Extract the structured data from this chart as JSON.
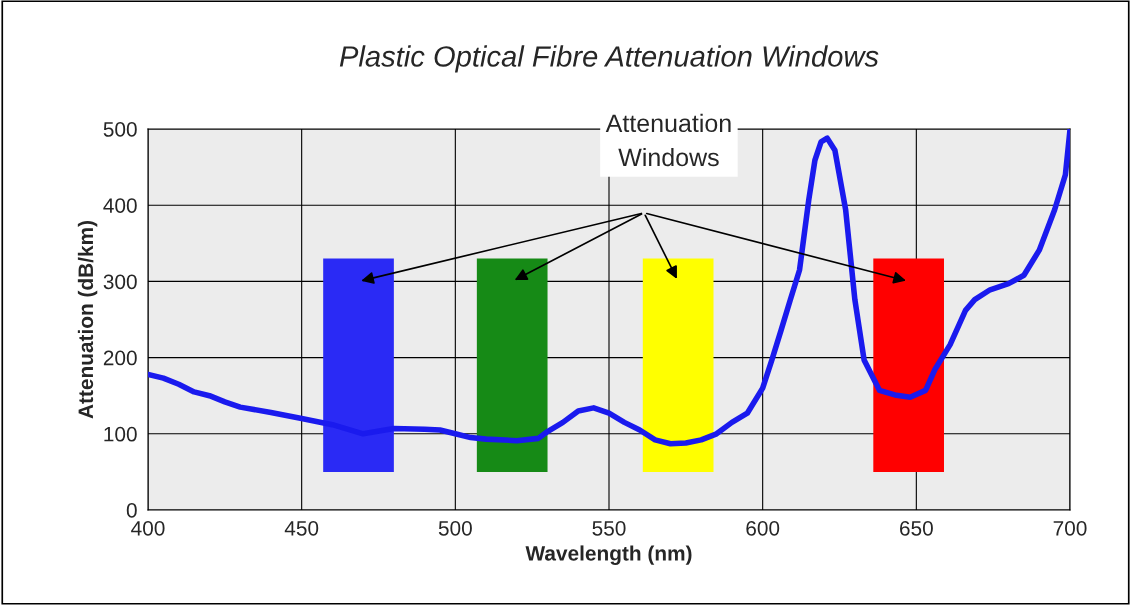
{
  "chart_data": {
    "type": "line",
    "title": "Plastic Optical Fibre Attenuation Windows",
    "xlabel": "Wavelength (nm)",
    "ylabel": "Attenuation (dB/km)",
    "xlim": [
      400,
      700
    ],
    "xticks": [
      400,
      450,
      500,
      550,
      600,
      650,
      700
    ],
    "ylim": [
      0,
      500
    ],
    "yticks": [
      0,
      100,
      200,
      300,
      400,
      500
    ],
    "grid": true,
    "legend": false,
    "annotations": [
      "Attenuation\nWindows"
    ],
    "series": [
      {
        "color": "#1a1aee",
        "x": [
          400,
          405,
          410,
          415,
          420,
          425,
          430,
          440,
          450,
          460,
          470,
          480,
          490,
          495,
          500,
          505,
          510,
          520,
          527,
          530,
          535,
          540,
          545,
          550,
          555,
          560,
          565,
          570,
          575,
          580,
          585,
          590,
          595,
          600,
          603,
          606,
          609,
          612,
          615,
          617,
          619,
          621,
          623.5,
          627,
          630,
          633,
          638,
          643,
          648,
          653,
          656,
          661,
          666,
          669,
          674,
          680,
          685,
          690,
          695,
          698.5,
          700
        ],
        "values": [
          178,
          173,
          165,
          155,
          150,
          142,
          135,
          128,
          120,
          112,
          100,
          107,
          106,
          105,
          100,
          95,
          93,
          91,
          94,
          103,
          115,
          130,
          134,
          127,
          115,
          105,
          92,
          87,
          88,
          92,
          100,
          115,
          127,
          160,
          197,
          236,
          276,
          315,
          407,
          459,
          483,
          488,
          472,
          394,
          276,
          197,
          157,
          151,
          148,
          157,
          184,
          217,
          262,
          276,
          289,
          297,
          308,
          341,
          394,
          440,
          499
        ]
      }
    ],
    "bands": [
      {
        "axis": "x",
        "from": 457,
        "to": 480,
        "color": "#2a2af5"
      },
      {
        "axis": "x",
        "from": 507,
        "to": 530,
        "color": "#168a16"
      },
      {
        "axis": "x",
        "from": 561,
        "to": 584,
        "color": "#ffff00"
      },
      {
        "axis": "x",
        "from": 636,
        "to": 659,
        "color": "#ff0000"
      }
    ]
  }
}
